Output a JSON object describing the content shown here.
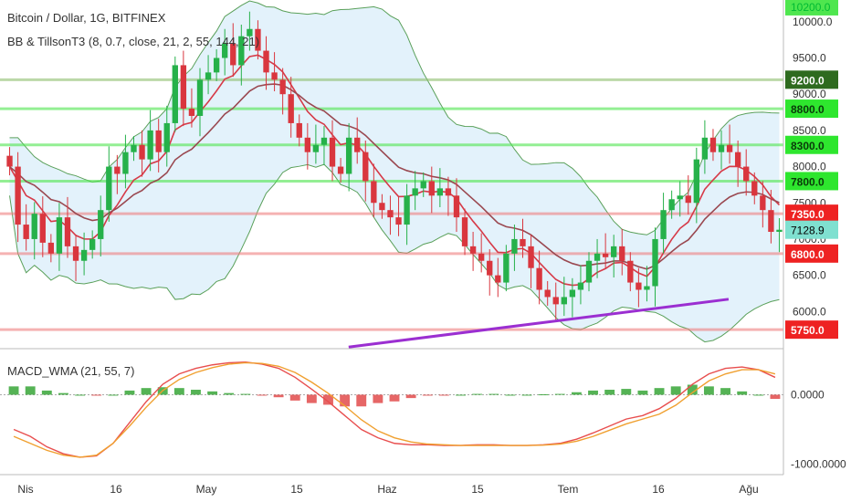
{
  "header": {
    "title": "Bitcoin / Dollar, 1G, BITFINEX",
    "indicator": "BB & TillsonT3 (8, 0.7, close, 21, 2, 55, 144, 21)",
    "macd_label": "MACD_WMA (21, 55, 7)"
  },
  "colors": {
    "up": "#26b14a",
    "down": "#d9363e",
    "bb_band": "#5aa05a",
    "bb_fill": "#e3f2fb",
    "tillson_fast": "#d63a48",
    "tillson_slow": "#9a4850",
    "trendline": "#9b2fd1",
    "resistance_green": "#4ee64e",
    "support_red": "#f08080",
    "macd_line": "#e84e4e",
    "signal_line": "#f0a030",
    "hist_up": "#2aa02a",
    "hist_down": "#e04040"
  },
  "chart_data": [
    {
      "type": "candlestick",
      "title": "Bitcoin / Dollar, 1G, BITFINEX",
      "ylim": [
        5500,
        10300
      ],
      "y_ticks": [
        "6000.0",
        "6500.0",
        "7000.0",
        "7500.0",
        "8000.0",
        "8500.0",
        "9000.0",
        "9500.0",
        "10000.0"
      ],
      "top_tag": "10200.0",
      "x_ticks": [
        "Nis",
        "16",
        "May",
        "15",
        "Haz",
        "15",
        "Tem",
        "16",
        "Ağu"
      ],
      "last_price": "7128.9",
      "horizontal_levels": [
        {
          "label": "9200.0",
          "value": 9200,
          "kind": "resistance-dark"
        },
        {
          "label": "8800.0",
          "value": 8800,
          "kind": "resistance"
        },
        {
          "label": "8300.0",
          "value": 8300,
          "kind": "resistance"
        },
        {
          "label": "7800.0",
          "value": 7800,
          "kind": "resistance"
        },
        {
          "label": "7350.0",
          "value": 7350,
          "kind": "support"
        },
        {
          "label": "6800.0",
          "value": 6800,
          "kind": "support"
        },
        {
          "label": "5750.0",
          "value": 5750,
          "kind": "support"
        }
      ],
      "closes": [
        8000,
        7200,
        7000,
        7350,
        6950,
        6800,
        7300,
        6900,
        6700,
        6850,
        7000,
        7400,
        8000,
        7900,
        8200,
        8300,
        8100,
        8500,
        8200,
        8600,
        9400,
        8800,
        8700,
        9200,
        9300,
        9500,
        9700,
        9400,
        9800,
        9900,
        9600,
        9300,
        9200,
        9000,
        8600,
        8400,
        8200,
        8300,
        8400,
        8000,
        7900,
        8400,
        8200,
        7800,
        7500,
        7400,
        7300,
        7200,
        7600,
        7700,
        7800,
        7600,
        7700,
        7600,
        7300,
        6900,
        6800,
        6700,
        6500,
        6400,
        6800,
        7000,
        6900,
        6600,
        6300,
        6200,
        6100,
        6200,
        6300,
        6400,
        6700,
        6800,
        6750,
        6900,
        6700,
        6400,
        6300,
        6350,
        7000,
        7400,
        7550,
        7600,
        7500,
        8100,
        8400,
        8200,
        8300,
        8200,
        8000,
        7800,
        7600,
        7400,
        7100,
        7128.9
      ],
      "trendline": {
        "x0": 0.445,
        "y0": 5510,
        "x1": 0.93,
        "y1": 6170
      }
    },
    {
      "type": "line",
      "title": "MACD_WMA (21, 55, 7)",
      "ylim": [
        -1150,
        650
      ],
      "y_ticks": [
        "0.0000",
        "-1000.0000"
      ],
      "series": [
        {
          "values": [
            -500,
            -600,
            -750,
            -850,
            -900,
            -880,
            -700,
            -400,
            -100,
            150,
            300,
            380,
            430,
            460,
            470,
            440,
            380,
            250,
            80,
            -100,
            -300,
            -500,
            -620,
            -700,
            -720,
            -720,
            -730,
            -730,
            -720,
            -720,
            -730,
            -730,
            -720,
            -700,
            -640,
            -550,
            -450,
            -350,
            -300,
            -200,
            -50,
            150,
            300,
            380,
            400,
            360,
            250
          ]
        },
        {
          "values": [
            -600,
            -700,
            -800,
            -870,
            -900,
            -870,
            -700,
            -450,
            -180,
            60,
            220,
            320,
            390,
            440,
            460,
            450,
            410,
            320,
            180,
            20,
            -160,
            -360,
            -520,
            -620,
            -680,
            -710,
            -720,
            -730,
            -730,
            -730,
            -730,
            -730,
            -725,
            -710,
            -670,
            -600,
            -510,
            -420,
            -350,
            -280,
            -150,
            30,
            200,
            300,
            360,
            360,
            300
          ]
        }
      ]
    }
  ]
}
